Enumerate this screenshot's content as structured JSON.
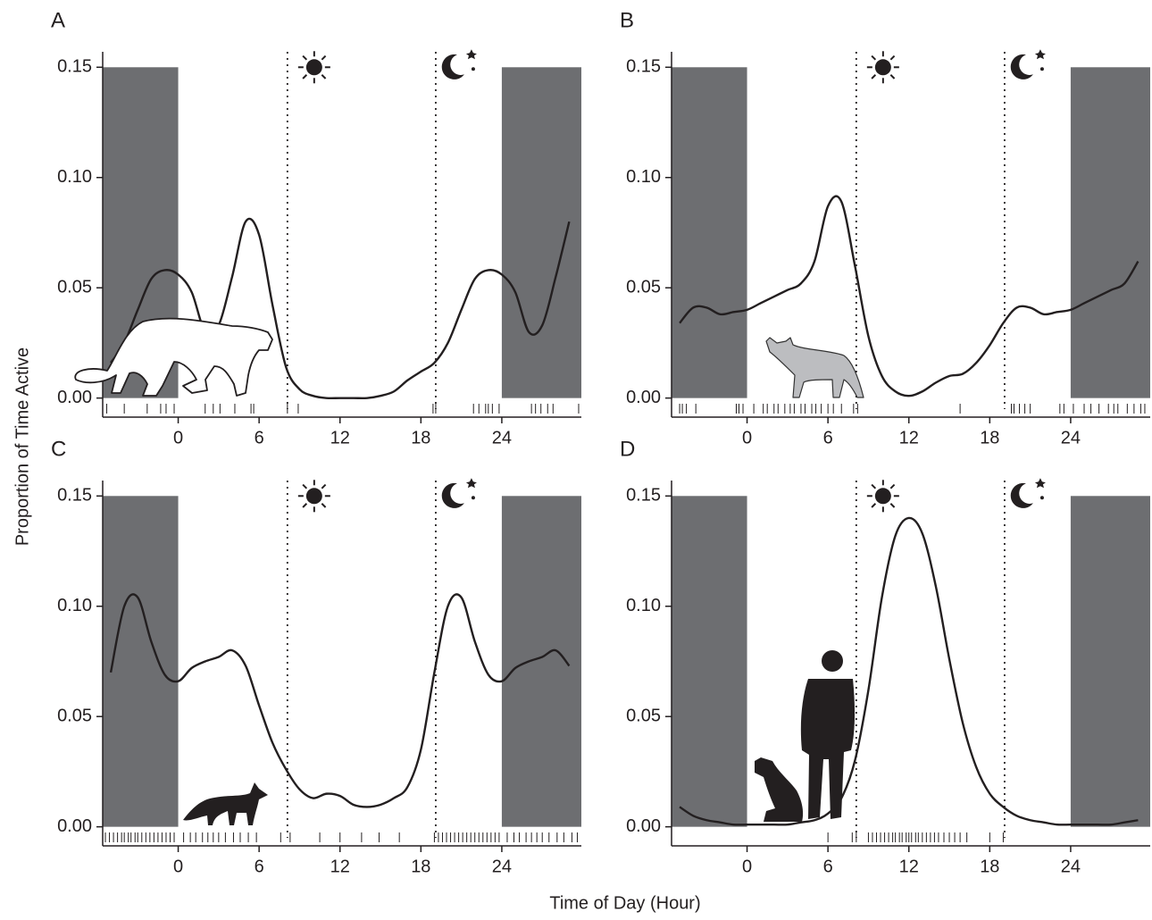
{
  "y_axis_title": "Proportion of Time Active",
  "x_axis_title": "Time of Day (Hour)",
  "chart_data": [
    {
      "type": "line",
      "label": "A",
      "color": "#231f20",
      "xlim": [
        -5.6,
        29.9
      ],
      "ylim": [
        -0.005,
        0.157
      ],
      "xticks": [
        0,
        6,
        12,
        18,
        24
      ],
      "yticks": [
        {
          "value": 0,
          "label": "0.00"
        },
        0.05,
        {
          "value": 0.1,
          "label": "0.10"
        },
        0.15
      ],
      "shade_x": [
        [
          -5.6,
          0
        ],
        [
          24,
          29.9
        ]
      ],
      "shade_ylim": [
        0,
        0.15
      ],
      "shade_color": "#6d6e71",
      "sunrise": 8.1,
      "sunset": 19.1,
      "x": [
        -5,
        -4,
        -3,
        -2,
        -1,
        0,
        1,
        2,
        3,
        4,
        5,
        6,
        7,
        8,
        9,
        10,
        11,
        12,
        13,
        14,
        15,
        16,
        17,
        18,
        19,
        20,
        21,
        22,
        23,
        24,
        25,
        26,
        27,
        28,
        29
      ],
      "values": [
        0.016,
        0.025,
        0.04,
        0.054,
        0.058,
        0.056,
        0.048,
        0.03,
        0.033,
        0.055,
        0.08,
        0.074,
        0.042,
        0.014,
        0.004,
        0.001,
        0,
        0,
        0,
        0,
        0.001,
        0.003,
        0.008,
        0.012,
        0.016,
        0.025,
        0.04,
        0.054,
        0.058,
        0.056,
        0.048,
        0.03,
        0.033,
        0.055,
        0.08
      ],
      "rug": [
        -5.3,
        -4.0,
        -2.3,
        -1.3,
        -0.9,
        -0.3,
        2.0,
        2.6,
        3.1,
        4.2,
        5.4,
        5.6,
        8.1,
        8.9,
        18.9,
        19.1,
        21.9,
        22.3,
        22.8,
        23.0,
        23.3,
        23.8,
        26.2,
        26.5,
        26.9,
        27.4,
        27.8,
        29.7
      ]
    },
    {
      "type": "line",
      "label": "B",
      "color": "#231f20",
      "xlim": [
        -5.6,
        29.9
      ],
      "ylim": [
        -0.005,
        0.157
      ],
      "xticks": [
        0,
        6,
        12,
        18,
        24
      ],
      "yticks": [
        {
          "value": 0,
          "label": "0.00"
        },
        0.05,
        {
          "value": 0.1,
          "label": "0.10"
        },
        0.15
      ],
      "shade_x": [
        [
          -5.6,
          0
        ],
        [
          24,
          29.9
        ]
      ],
      "shade_ylim": [
        0,
        0.15
      ],
      "shade_color": "#6d6e71",
      "sunrise": 8.1,
      "sunset": 19.1,
      "x": [
        -5,
        -4,
        -3,
        -2,
        -1,
        0,
        1,
        2,
        3,
        4,
        5,
        6,
        7,
        8,
        9,
        10,
        11,
        12,
        13,
        14,
        15,
        16,
        17,
        18,
        19,
        20,
        21,
        22,
        23,
        24,
        25,
        26,
        27,
        28,
        29
      ],
      "values": [
        0.034,
        0.041,
        0.041,
        0.038,
        0.039,
        0.04,
        0.043,
        0.046,
        0.049,
        0.052,
        0.062,
        0.087,
        0.089,
        0.06,
        0.028,
        0.01,
        0.003,
        0.001,
        0.003,
        0.007,
        0.01,
        0.011,
        0.016,
        0.024,
        0.034,
        0.041,
        0.041,
        0.038,
        0.039,
        0.04,
        0.043,
        0.046,
        0.049,
        0.052,
        0.062
      ],
      "rug": [
        -5.0,
        -4.8,
        -4.5,
        -3.8,
        -0.8,
        -0.6,
        -0.3,
        0.5,
        1.2,
        1.5,
        2.0,
        2.3,
        2.8,
        3.2,
        3.5,
        4.0,
        4.3,
        4.8,
        5.1,
        5.5,
        6.0,
        6.4,
        7.0,
        7.9,
        8.2,
        15.8,
        19.6,
        19.8,
        20.2,
        20.6,
        21.0,
        23.2,
        23.5,
        24.2,
        25.0,
        25.5,
        26.1,
        26.8,
        27.2,
        27.5,
        28.2,
        28.7,
        29.2,
        29.5
      ]
    },
    {
      "type": "line",
      "label": "C",
      "color": "#231f20",
      "xlim": [
        -5.6,
        29.9
      ],
      "ylim": [
        -0.005,
        0.157
      ],
      "xticks": [
        0,
        6,
        12,
        18,
        24
      ],
      "yticks": [
        {
          "value": 0,
          "label": "0.00"
        },
        0.05,
        {
          "value": 0.1,
          "label": "0.10"
        },
        0.15
      ],
      "shade_x": [
        [
          -5.6,
          0
        ],
        [
          24,
          29.9
        ]
      ],
      "shade_ylim": [
        0,
        0.15
      ],
      "shade_color": "#6d6e71",
      "sunrise": 8.1,
      "sunset": 19.1,
      "x": [
        -5,
        -4,
        -3,
        -2,
        -1,
        0,
        1,
        2,
        3,
        4,
        5,
        6,
        7,
        8,
        9,
        10,
        11,
        12,
        13,
        14,
        15,
        16,
        17,
        18,
        19,
        20,
        21,
        22,
        23,
        24,
        25,
        26,
        27,
        28,
        29
      ],
      "values": [
        0.07,
        0.1,
        0.104,
        0.084,
        0.069,
        0.066,
        0.072,
        0.075,
        0.077,
        0.08,
        0.073,
        0.055,
        0.038,
        0.026,
        0.017,
        0.013,
        0.015,
        0.014,
        0.01,
        0.009,
        0.01,
        0.013,
        0.018,
        0.035,
        0.07,
        0.1,
        0.104,
        0.084,
        0.069,
        0.066,
        0.072,
        0.075,
        0.077,
        0.08,
        0.073
      ],
      "rug": [
        -5.4,
        -5.1,
        -4.8,
        -4.5,
        -4.2,
        -4.0,
        -3.7,
        -3.5,
        -3.2,
        -3.0,
        -2.7,
        -2.4,
        -2.1,
        -1.8,
        -1.5,
        -1.2,
        -0.9,
        -0.6,
        -0.3,
        0.4,
        0.9,
        1.3,
        1.8,
        2.2,
        2.6,
        3.0,
        3.5,
        4.1,
        4.6,
        5.2,
        5.8,
        7.6,
        8.3,
        10.5,
        12.0,
        13.6,
        14.9,
        16.4,
        19.0,
        19.3,
        19.6,
        19.9,
        20.2,
        20.5,
        20.8,
        21.1,
        21.4,
        21.7,
        22.0,
        22.3,
        22.6,
        22.9,
        23.2,
        23.5,
        23.8,
        24.4,
        24.9,
        25.3,
        25.8,
        26.2,
        26.6,
        27.0,
        27.5,
        28.1,
        28.6,
        29.2,
        29.6
      ]
    },
    {
      "type": "line",
      "label": "D",
      "color": "#231f20",
      "xlim": [
        -5.6,
        29.9
      ],
      "ylim": [
        -0.005,
        0.157
      ],
      "xticks": [
        0,
        6,
        12,
        18,
        24
      ],
      "yticks": [
        {
          "value": 0,
          "label": "0.00"
        },
        0.05,
        {
          "value": 0.1,
          "label": "0.10"
        },
        0.15
      ],
      "shade_x": [
        [
          -5.6,
          0
        ],
        [
          24,
          29.9
        ]
      ],
      "shade_ylim": [
        0,
        0.15
      ],
      "shade_color": "#6d6e71",
      "sunrise": 8.1,
      "sunset": 19.1,
      "x": [
        -5,
        -4,
        -3,
        -2,
        -1,
        0,
        1,
        2,
        3,
        4,
        5,
        6,
        7,
        8,
        9,
        10,
        11,
        12,
        13,
        14,
        15,
        16,
        17,
        18,
        19,
        20,
        21,
        22,
        23,
        24,
        25,
        26,
        27,
        28,
        29
      ],
      "values": [
        0.009,
        0.005,
        0.003,
        0.002,
        0.001,
        0.001,
        0.001,
        0.001,
        0.001,
        0.002,
        0.003,
        0.006,
        0.013,
        0.03,
        0.062,
        0.104,
        0.132,
        0.14,
        0.133,
        0.109,
        0.076,
        0.047,
        0.027,
        0.015,
        0.009,
        0.005,
        0.003,
        0.002,
        0.001,
        0.001,
        0.001,
        0.001,
        0.001,
        0.002,
        0.003
      ],
      "rug": [
        6.0,
        7.8,
        8.1,
        9.0,
        9.3,
        9.6,
        9.9,
        10.2,
        10.5,
        10.8,
        11.0,
        11.3,
        11.5,
        11.8,
        12.0,
        12.2,
        12.5,
        12.7,
        13.0,
        13.3,
        13.6,
        13.9,
        14.2,
        14.6,
        15.0,
        15.4,
        15.8,
        16.3,
        18.0,
        19.0
      ]
    }
  ]
}
